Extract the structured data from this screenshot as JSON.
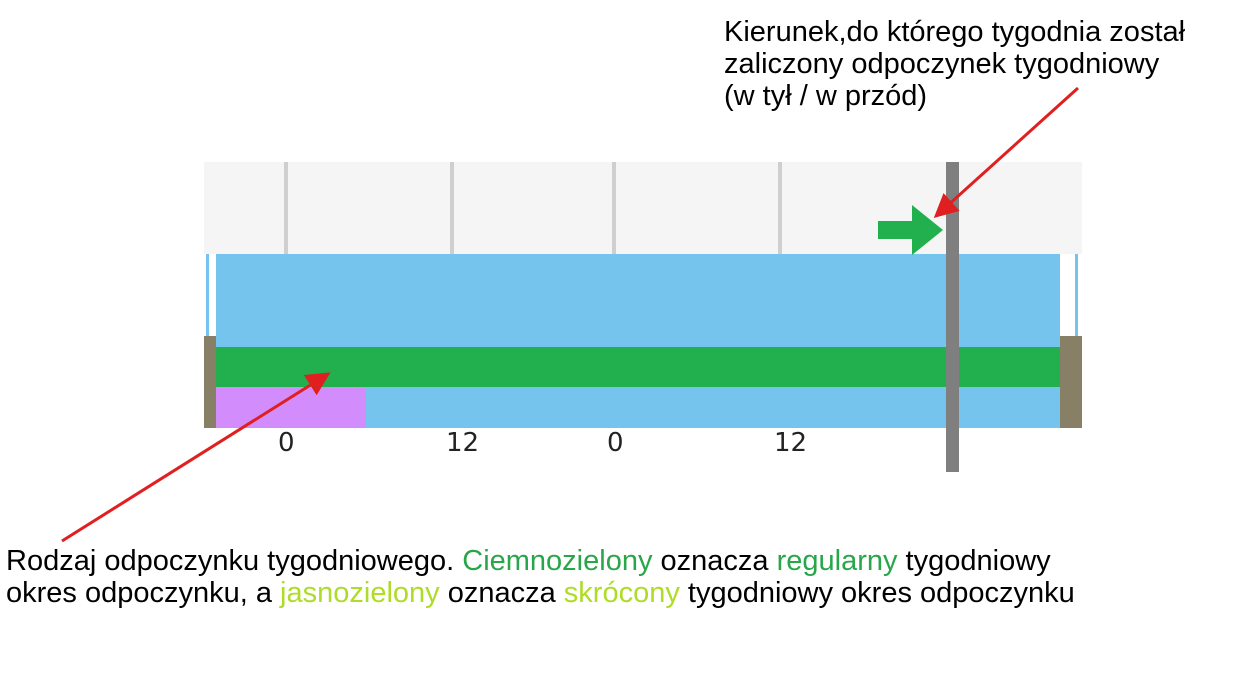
{
  "top_annotation": {
    "lines": [
      "Kierunek,do którego tygodnia został",
      "zaliczony odpoczynek tygodniowy",
      "(w tył / w przód)"
    ]
  },
  "bottom_annotation": {
    "part1": "Rodzaj odpoczynku tygodniowego. ",
    "dark_green_word": "Ciemnozielony",
    "part2": " oznacza ",
    "regular_word": "regularny",
    "part3": " tygodniowy",
    "part4": "okres odpoczynku, a ",
    "light_green_word": "jasnozielony",
    "part5": " oznacza ",
    "shortened_word": "skrócony",
    "part6": " tygodniowy okres odpoczynku"
  },
  "timeline": {
    "hour_labels": [
      "0",
      "12",
      "0",
      "12"
    ],
    "colors": {
      "activity_blue": "#74c4ee",
      "regular_rest_dark_green": "#22b04f",
      "other_purple": "#d38cfb",
      "week_boundary_gray": "#7f7f7f",
      "edge_olive": "#878066",
      "annotation_arrow_red": "#e02020",
      "direction_arrow_green": "#22b04f"
    },
    "direction_arrow": "right-arrow-icon"
  }
}
